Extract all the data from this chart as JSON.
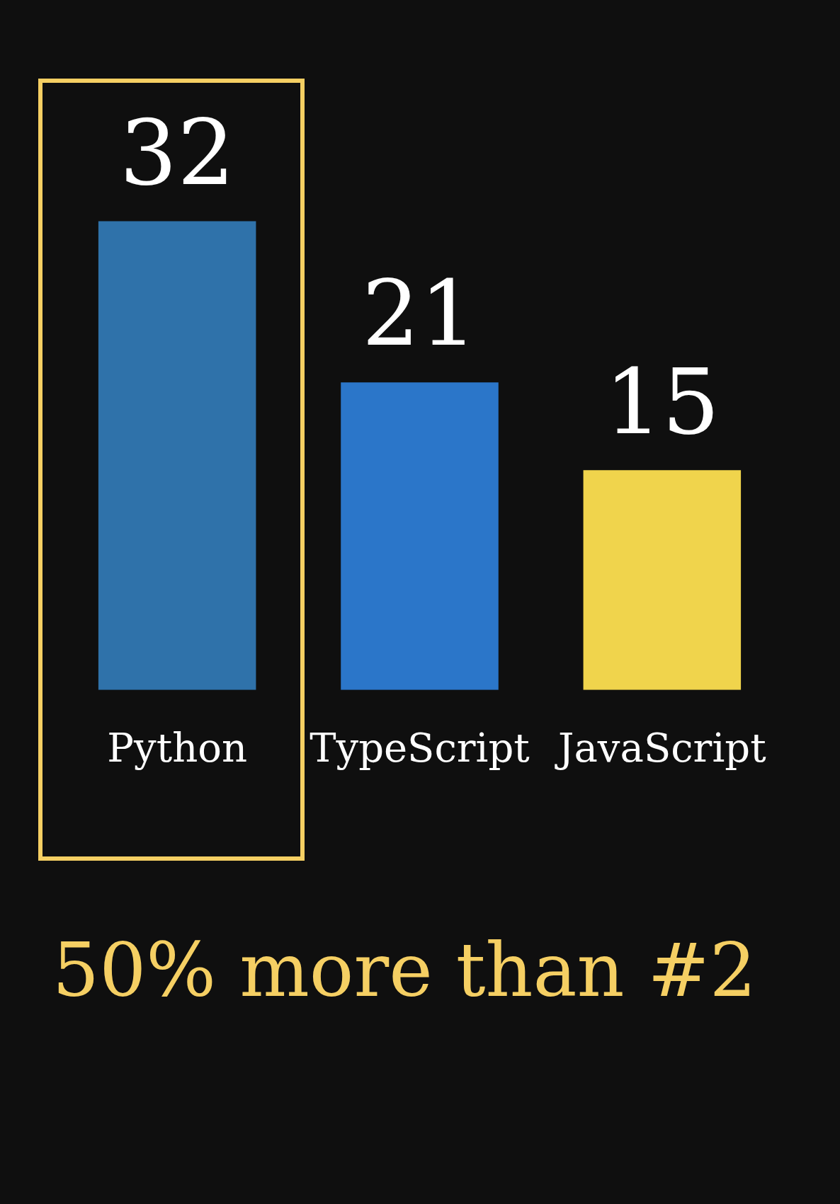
{
  "chart_data": {
    "type": "bar",
    "categories": [
      "Python",
      "TypeScript",
      "JavaScript"
    ],
    "values": [
      32,
      21,
      15
    ],
    "colors": [
      "#2f72aa",
      "#2b76c9",
      "#f0d44c"
    ],
    "data_labels": true,
    "annotations": [
      "50% more than #2"
    ]
  }
}
